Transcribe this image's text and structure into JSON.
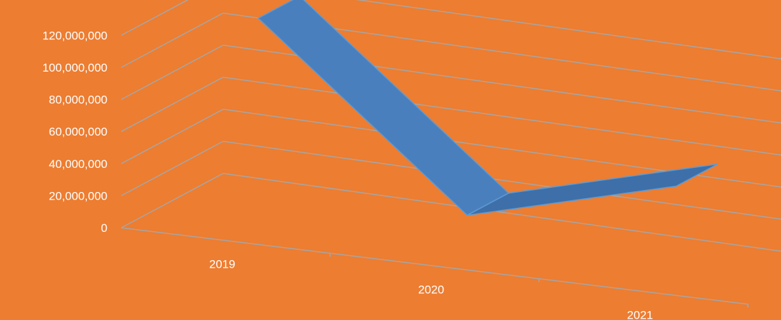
{
  "colors": {
    "background": "#ED7D31",
    "grid": "#A6A6A6",
    "ribbon_front": "#4A7FBD",
    "ribbon_top": "#3E6FA8",
    "text": "#FFFFFF"
  },
  "chart_data": {
    "type": "line",
    "three_d": true,
    "title": "",
    "xlabel": "",
    "ylabel": "",
    "categories": [
      "2019",
      "2020",
      "2021"
    ],
    "series": [
      {
        "values": [
          108000000,
          1000000,
          35000000
        ]
      }
    ],
    "ylim": [
      0,
      120000000
    ],
    "y_ticks": [
      "0",
      "20,000,000",
      "40,000,000",
      "60,000,000",
      "80,000,000",
      "100,000,000",
      "120,000,000"
    ],
    "grid": true,
    "legend": "none"
  }
}
